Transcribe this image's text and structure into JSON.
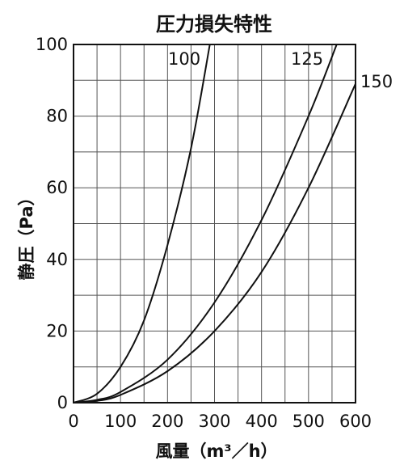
{
  "chart_data": {
    "type": "line",
    "title": "圧力損失特性",
    "xlabel": "風量（m³／h）",
    "ylabel": "静圧（Pa）",
    "xlim": [
      0,
      600
    ],
    "ylim": [
      0,
      100
    ],
    "x_ticks": [
      "0",
      "100",
      "200",
      "300",
      "400",
      "500",
      "600"
    ],
    "y_ticks": [
      "0",
      "20",
      "40",
      "60",
      "80",
      "100"
    ],
    "grid": true,
    "x_minor_step": 50,
    "y_minor_step": 10,
    "series": [
      {
        "name": "100",
        "x": [
          0,
          50,
          100,
          150,
          200,
          250,
          290
        ],
        "y": [
          0,
          2.5,
          10,
          23,
          44,
          71,
          100
        ]
      },
      {
        "name": "125",
        "x": [
          0,
          50,
          100,
          200,
          300,
          400,
          500,
          560
        ],
        "y": [
          0,
          0.8,
          3,
          12,
          28,
          51,
          80,
          100
        ]
      },
      {
        "name": "150",
        "x": [
          0,
          50,
          100,
          200,
          300,
          400,
          500,
          600
        ],
        "y": [
          0,
          0.5,
          2.2,
          8.8,
          20,
          36.5,
          60,
          89
        ]
      }
    ]
  }
}
